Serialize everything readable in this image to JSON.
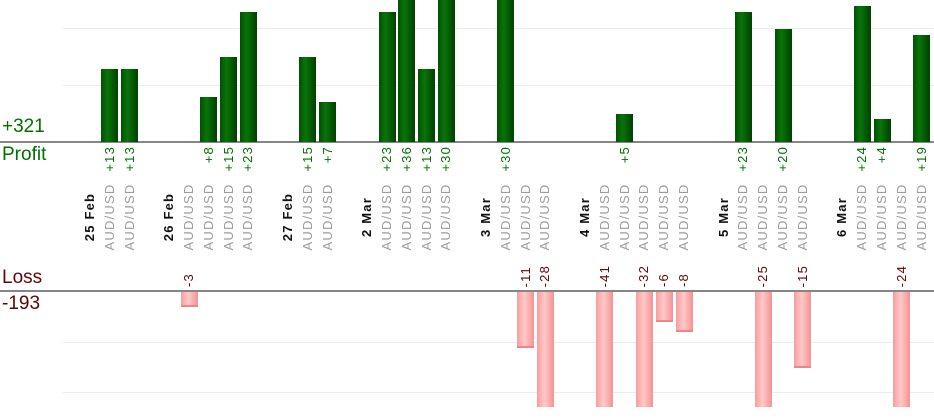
{
  "summary": {
    "profit_total": "+321",
    "profit_label": "Profit",
    "loss_label": "Loss",
    "loss_total": "-193"
  },
  "colors": {
    "background": "#ffffff",
    "profit_text": "#007000",
    "loss_text": "#600505",
    "date_text": "#111111",
    "instrument_text": "#9b9b9b",
    "axis_line": "#868686",
    "gridline": "#ececec",
    "bar_green_edge": "#015101",
    "bar_green_mid": "#097409",
    "bar_green_end": "#014301",
    "bar_pink_edge": "#f89e9e",
    "bar_pink_mid": "#ffc8c8",
    "bar_pink_end": "#f69595",
    "bar_pink_cap": "#ee8585"
  },
  "chart_data": {
    "type": "bar",
    "title": "",
    "description": "Daily per-trade profit (green, above axis) and loss (pink, below axis); bars taller than the visible plot are clipped at the image edges",
    "legend": "none",
    "grid": "on",
    "profit_axis": {
      "total_label": "+321",
      "axis_title": "Profit",
      "gridline_values": [
        10,
        20
      ],
      "visible_max": 25
    },
    "loss_axis": {
      "total_label": "-193",
      "axis_title": "Loss",
      "gridline_values": [
        -10,
        -20
      ],
      "visible_min": -23
    },
    "groups": [
      {
        "date": "25 Feb",
        "trades": [
          {
            "instrument": "AUD/USD",
            "value": 13,
            "label": "+13"
          },
          {
            "instrument": "AUD/USD",
            "value": 13,
            "label": "+13"
          }
        ]
      },
      {
        "date": "26 Feb",
        "trades": [
          {
            "instrument": "AUD/USD",
            "value": -3,
            "label": "-3"
          },
          {
            "instrument": "AUD/USD",
            "value": 8,
            "label": "+8"
          },
          {
            "instrument": "AUD/USD",
            "value": 15,
            "label": "+15"
          },
          {
            "instrument": "AUD/USD",
            "value": 23,
            "label": "+23"
          }
        ]
      },
      {
        "date": "27 Feb",
        "trades": [
          {
            "instrument": "AUD/USD",
            "value": 15,
            "label": "+15"
          },
          {
            "instrument": "AUD/USD",
            "value": 7,
            "label": "+7"
          }
        ]
      },
      {
        "date": "2 Mar",
        "trades": [
          {
            "instrument": "AUD/USD",
            "value": 23,
            "label": "+23"
          },
          {
            "instrument": "AUD/USD",
            "value": 36,
            "label": "+36"
          },
          {
            "instrument": "AUD/USD",
            "value": 13,
            "label": "+13"
          },
          {
            "instrument": "AUD/USD",
            "value": 30,
            "label": "+30"
          }
        ]
      },
      {
        "date": "3 Mar",
        "trades": [
          {
            "instrument": "AUD/USD",
            "value": 30,
            "label": "+30"
          },
          {
            "instrument": "AUD/USD",
            "value": -11,
            "label": "-11"
          },
          {
            "instrument": "AUD/USD",
            "value": -28,
            "label": "-28"
          }
        ]
      },
      {
        "date": "4 Mar",
        "trades": [
          {
            "instrument": "AUD/USD",
            "value": -41,
            "label": "-41"
          },
          {
            "instrument": "AUD/USD",
            "value": 5,
            "label": "+5"
          },
          {
            "instrument": "AUD/USD",
            "value": -32,
            "label": "-32"
          },
          {
            "instrument": "AUD/USD",
            "value": -6,
            "label": "-6"
          },
          {
            "instrument": "AUD/USD",
            "value": -8,
            "label": "-8"
          }
        ]
      },
      {
        "date": "5 Mar",
        "trades": [
          {
            "instrument": "AUD/USD",
            "value": 23,
            "label": "+23"
          },
          {
            "instrument": "AUD/USD",
            "value": -25,
            "label": "-25"
          },
          {
            "instrument": "AUD/USD",
            "value": 20,
            "label": "+20"
          },
          {
            "instrument": "AUD/USD",
            "value": -15,
            "label": "-15"
          }
        ]
      },
      {
        "date": "6 Mar",
        "trades": [
          {
            "instrument": "AUD/USD",
            "value": 24,
            "label": "+24"
          },
          {
            "instrument": "AUD/USD",
            "value": 4,
            "label": "+4"
          },
          {
            "instrument": "AUD/USD",
            "value": -24,
            "label": "-24"
          },
          {
            "instrument": "AUD/USD",
            "value": 19,
            "label": "+19"
          }
        ]
      }
    ]
  }
}
